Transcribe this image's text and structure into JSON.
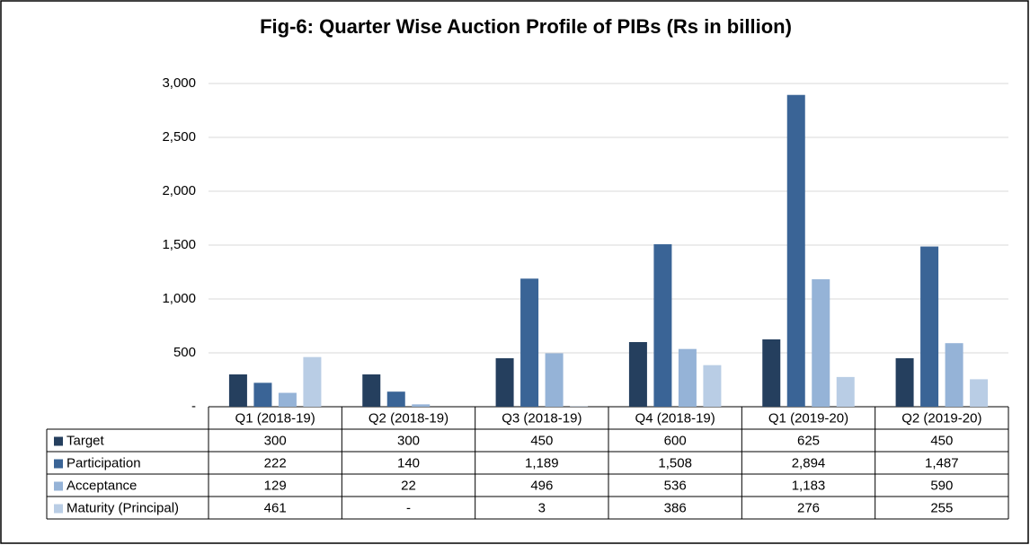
{
  "chart_data": {
    "type": "bar",
    "title": "Fig-6: Quarter Wise Auction Profile of PIBs (Rs in billion)",
    "categories": [
      "Q1 (2018-19)",
      "Q2 (2018-19)",
      "Q3 (2018-19)",
      "Q4 (2018-19)",
      "Q1 (2019-20)",
      "Q2 (2019-20)"
    ],
    "series": [
      {
        "name": "Target",
        "color": "#253f5e",
        "values": [
          300,
          300,
          450,
          600,
          625,
          450
        ],
        "value_labels": [
          "300",
          "300",
          "450",
          "600",
          "625",
          "450"
        ]
      },
      {
        "name": "Participation",
        "color": "#3a6496",
        "values": [
          222,
          140,
          1189,
          1508,
          2894,
          1487
        ],
        "value_labels": [
          "222",
          "140",
          "1,189",
          "1,508",
          "2,894",
          "1,487"
        ]
      },
      {
        "name": "Acceptance",
        "color": "#95b3d7",
        "values": [
          129,
          22,
          496,
          536,
          1183,
          590
        ],
        "value_labels": [
          "129",
          "22",
          "496",
          "536",
          "1,183",
          "590"
        ]
      },
      {
        "name": "Maturity (Principal)",
        "color": "#b9cde5",
        "values": [
          461,
          null,
          3,
          386,
          276,
          255
        ],
        "value_labels": [
          "461",
          "-",
          "3",
          "386",
          "276",
          "255"
        ]
      }
    ],
    "ylim": [
      0,
      3000
    ],
    "yticks": [
      {
        "value": 0,
        "label": "-"
      },
      500,
      {
        "value": 1000,
        "label": "1,000"
      },
      {
        "value": 1500,
        "label": "1,500"
      },
      {
        "value": 2000,
        "label": "2,000"
      },
      {
        "value": 2500,
        "label": "2,500"
      },
      {
        "value": 3000,
        "label": "3,000"
      }
    ],
    "grid": true
  }
}
